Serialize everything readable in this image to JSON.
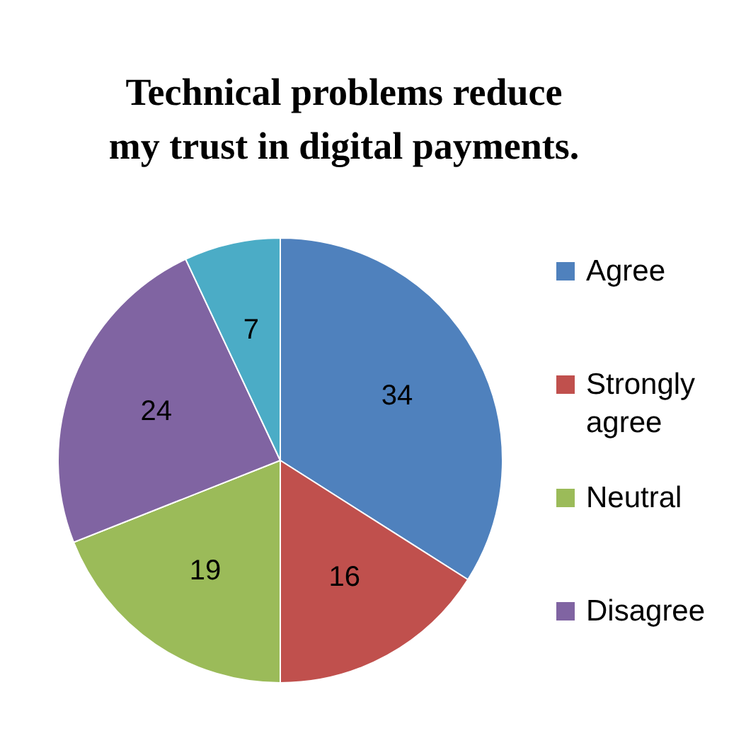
{
  "chart_data": {
    "type": "pie",
    "title": "Technical problems reduce my trust in digital payments.",
    "categories": [
      "Agree",
      "Strongly agree",
      "Neutral",
      "Disagree",
      null
    ],
    "values": [
      34,
      16,
      19,
      24,
      7
    ],
    "colors": [
      "#4f81bd",
      "#c0504d",
      "#9bbb59",
      "#8064a2",
      "#4bacc6"
    ],
    "data_labels": true,
    "legend": "right"
  }
}
